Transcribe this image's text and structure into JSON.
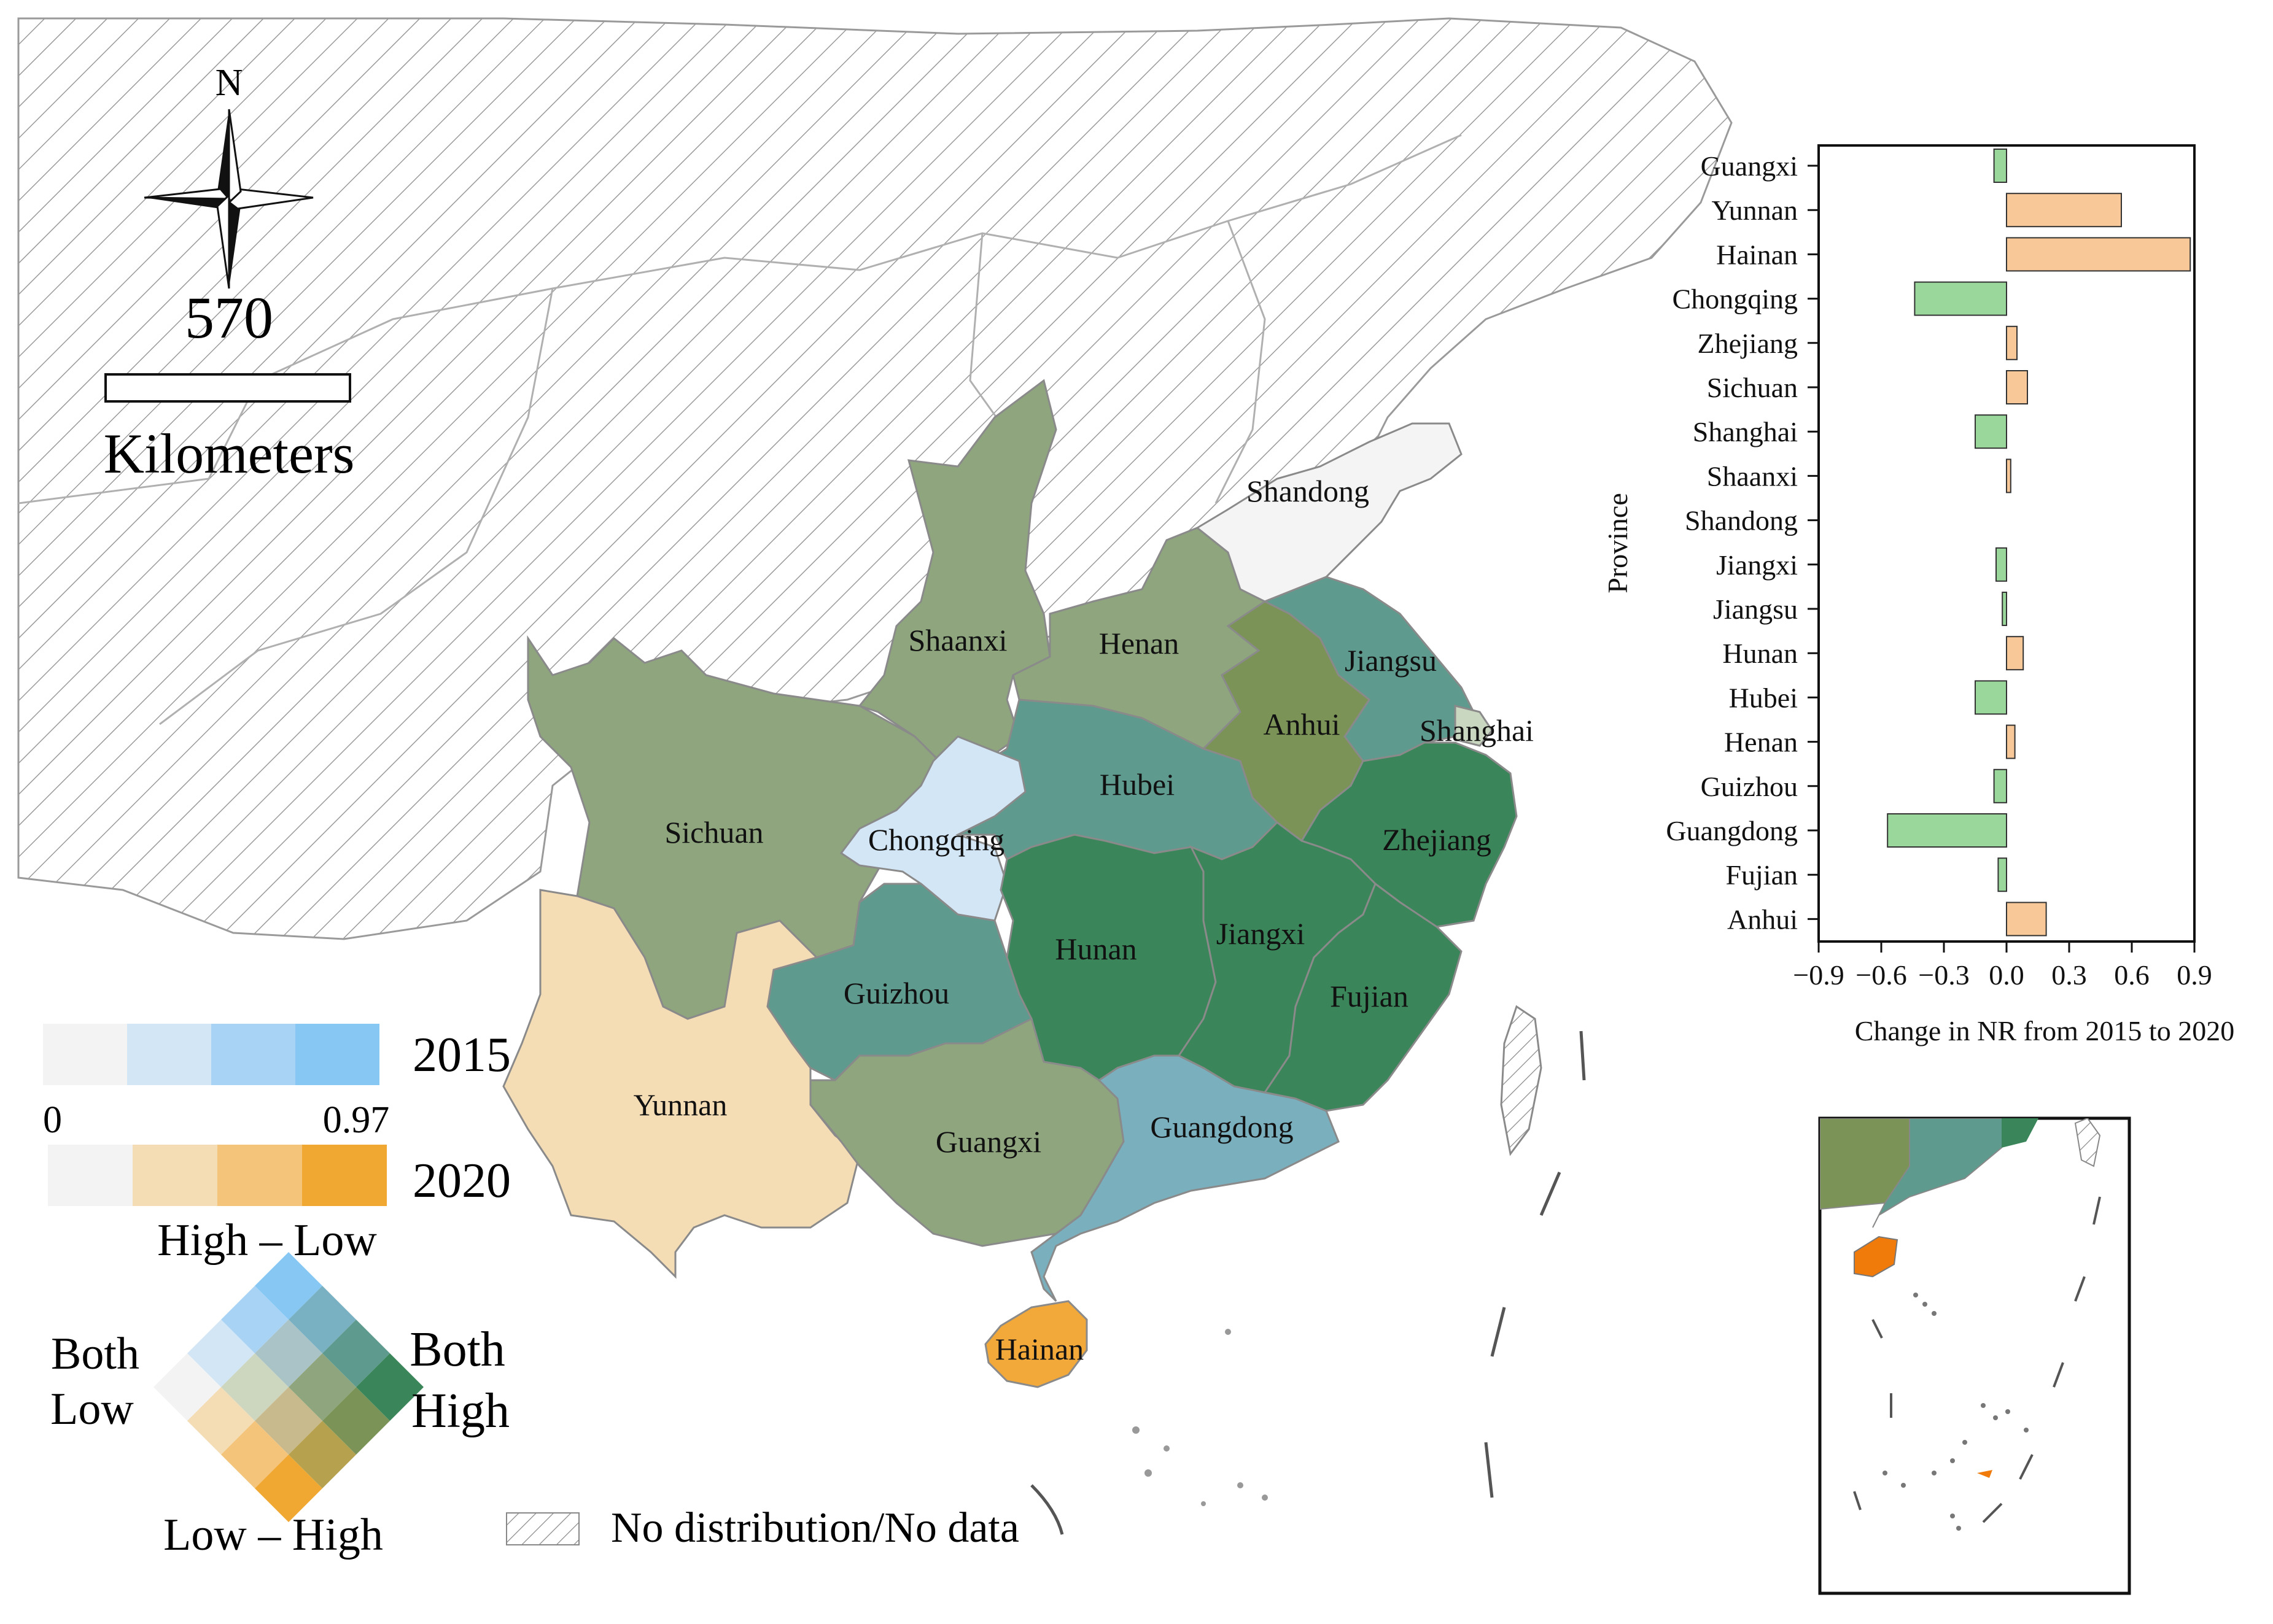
{
  "map": {
    "compass_label": "N",
    "scale_value": "570",
    "scale_unit": "Kilometers",
    "provinces": [
      {
        "name": "Shandong",
        "color": "#f4f4f4"
      },
      {
        "name": "Shaanxi",
        "color": "#8ea57e"
      },
      {
        "name": "Henan",
        "color": "#8ea57e"
      },
      {
        "name": "Jiangsu",
        "color": "#5e9a8e"
      },
      {
        "name": "Anhui",
        "color": "#7b9356"
      },
      {
        "name": "Shanghai",
        "color": "#c9d7c0"
      },
      {
        "name": "Sichuan",
        "color": "#8ea57e"
      },
      {
        "name": "Hubei",
        "color": "#5e9a8e"
      },
      {
        "name": "Chongqing",
        "color": "#d3e6f6"
      },
      {
        "name": "Zhejiang",
        "color": "#3a8559"
      },
      {
        "name": "Hunan",
        "color": "#3a8559"
      },
      {
        "name": "Jiangxi",
        "color": "#3a8559"
      },
      {
        "name": "Guizhou",
        "color": "#5e9a8e"
      },
      {
        "name": "Fujian",
        "color": "#3a8559"
      },
      {
        "name": "Yunnan",
        "color": "#f4dcb4"
      },
      {
        "name": "Guangxi",
        "color": "#8ea57e"
      },
      {
        "name": "Guangdong",
        "color": "#7aafbe"
      },
      {
        "name": "Hainan",
        "color": "#f2a93a"
      }
    ]
  },
  "legend": {
    "year1": "2015",
    "year2": "2020",
    "min": "0",
    "max": "0.97",
    "blue_ramp": [
      "#f3f3f3",
      "#d3e6f6",
      "#a9d3f4",
      "#86c7f4"
    ],
    "orange_ramp": [
      "#f3f3f3",
      "#f4dcb4",
      "#f3c47a",
      "#f0a833"
    ],
    "high_low": "High – Low",
    "low_high": "Low – High",
    "both_low_1": "Both",
    "both_low_2": "Low",
    "both_high_1": "Both",
    "both_high_2": "High",
    "no_data": "No distribution/No data",
    "bivariate_colors": [
      [
        "#f3f3f3",
        "#d3e6f6",
        "#a9d3f4",
        "#86c7f4"
      ],
      [
        "#f4dcb4",
        "#cdd6bf",
        "#a9c3c6",
        "#79b0c2"
      ],
      [
        "#f3c47a",
        "#c8ba8c",
        "#8ea57e",
        "#5e9a8e"
      ],
      [
        "#f0a833",
        "#b6a14f",
        "#7b9356",
        "#3a8559"
      ]
    ]
  },
  "chart_data": {
    "type": "bar",
    "orientation": "horizontal",
    "categories": [
      "Guangxi",
      "Yunnan",
      "Hainan",
      "Chongqing",
      "Zhejiang",
      "Sichuan",
      "Shanghai",
      "Shaanxi",
      "Shandong",
      "Jiangxi",
      "Jiangsu",
      "Hunan",
      "Hubei",
      "Henan",
      "Guizhou",
      "Guangdong",
      "Fujian",
      "Anhui"
    ],
    "values": [
      -0.06,
      0.55,
      0.88,
      -0.44,
      0.05,
      0.1,
      -0.15,
      0.02,
      0.0,
      -0.05,
      -0.02,
      0.08,
      -0.15,
      0.04,
      -0.06,
      -0.57,
      -0.04,
      0.19
    ],
    "positive_color": "#f9c898",
    "negative_color": "#9ad79a",
    "xlabel": "Change in NR from 2015 to 2020",
    "ylabel": "Province",
    "xticks": [
      "−0.9",
      "−0.6",
      "−0.3",
      "0.0",
      "0.3",
      "0.6",
      "0.9"
    ],
    "tick_values": [
      -0.9,
      -0.6,
      -0.3,
      0.0,
      0.3,
      0.6,
      0.9
    ],
    "xlim": [
      -0.9,
      0.9
    ]
  }
}
